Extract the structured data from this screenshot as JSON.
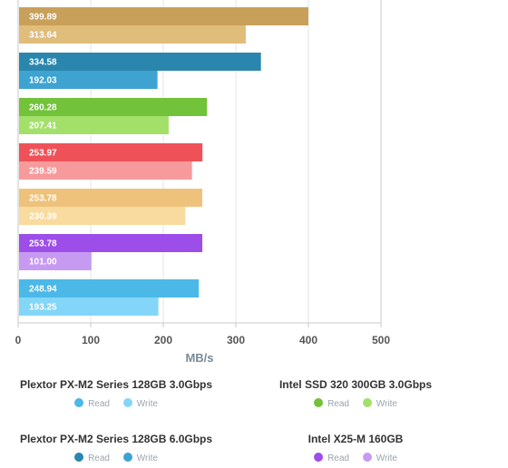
{
  "chart_data": {
    "type": "bar",
    "orientation": "horizontal",
    "xlabel": "MB/s",
    "xlim": [
      0,
      500
    ],
    "xticks": [
      0,
      100,
      200,
      300,
      400,
      500
    ],
    "grid": true,
    "groups": [
      {
        "bars": [
          {
            "value": 399.89,
            "color": "#c9a05a"
          },
          {
            "value": 313.64,
            "color": "#e0bd7a"
          }
        ]
      },
      {
        "bars": [
          {
            "value": 334.58,
            "color": "#2a86ac"
          },
          {
            "value": 192.03,
            "color": "#3fa3d1"
          }
        ]
      },
      {
        "bars": [
          {
            "value": 260.28,
            "color": "#72c23a"
          },
          {
            "value": 207.41,
            "color": "#a3e06a"
          }
        ]
      },
      {
        "bars": [
          {
            "value": 253.97,
            "color": "#ee5258"
          },
          {
            "value": 239.59,
            "color": "#f79a9c"
          }
        ]
      },
      {
        "bars": [
          {
            "value": 253.78,
            "color": "#efc27c"
          },
          {
            "value": 230.39,
            "color": "#fadb9f"
          }
        ]
      },
      {
        "bars": [
          {
            "value": 253.78,
            "color": "#9d4de8"
          },
          {
            "value": 101.0,
            "color": "#c79af2"
          }
        ]
      },
      {
        "bars": [
          {
            "value": 248.94,
            "color": "#4bb8e8"
          },
          {
            "value": 193.25,
            "color": "#83d6f7"
          }
        ]
      }
    ],
    "legend": [
      {
        "title": "Plextor PX-M2 Series 128GB 3.0Gbps",
        "read_label": "Read",
        "write_label": "Write",
        "read_color": "#4bb8e8",
        "write_color": "#83d6f7"
      },
      {
        "title": "Intel SSD 320 300GB 3.0Gbps",
        "read_label": "Read",
        "write_label": "Write",
        "read_color": "#72c23a",
        "write_color": "#a3e06a"
      },
      {
        "title": "Plextor PX-M2 Series 128GB 6.0Gbps",
        "read_label": "Read",
        "write_label": "Write",
        "read_color": "#2a86ac",
        "write_color": "#3fa3d1"
      },
      {
        "title": "Intel X25-M 160GB",
        "read_label": "Read",
        "write_label": "Write",
        "read_color": "#9d4de8",
        "write_color": "#c79af2"
      }
    ]
  }
}
